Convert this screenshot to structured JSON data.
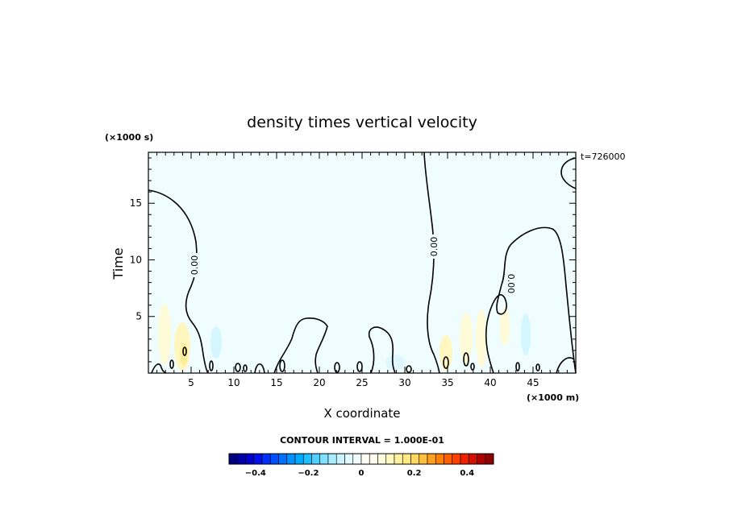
{
  "chart_data": {
    "type": "heatmap",
    "title": "density times vertical velocity",
    "xlabel": "X coordinate",
    "ylabel": "Time",
    "x_unit_label": "(×1000 m)",
    "y_unit_label": "(×1000 s)",
    "time_stamp": "t=726000",
    "xlim": [
      0,
      50
    ],
    "ylim": [
      0,
      19.5
    ],
    "x_ticks": [
      5,
      10,
      15,
      20,
      25,
      30,
      35,
      40,
      45
    ],
    "y_ticks": [
      5,
      10,
      15
    ],
    "contour_interval_text": "CONTOUR INTERVAL = 1.000E-01",
    "contour_labels": [
      {
        "text": "0.00",
        "x": 5.7,
        "y": 9.7
      },
      {
        "text": "0.00",
        "x": 33.7,
        "y": 11.4
      },
      {
        "text": "0.00",
        "x": 42.8,
        "y": 8.3
      }
    ],
    "colorbar": {
      "range": [
        -0.5,
        0.5
      ],
      "tick_labels": [
        "−0.4",
        "−0.2",
        "0",
        "0.2",
        "0.4"
      ],
      "tick_values": [
        -0.4,
        -0.2,
        0,
        0.2,
        0.4
      ],
      "colors": [
        "#00007f",
        "#0000a8",
        "#0000cc",
        "#0010e8",
        "#0030ff",
        "#0050ff",
        "#0070ff",
        "#0090ff",
        "#00aaff",
        "#20c0ff",
        "#50d0ff",
        "#80e0ff",
        "#a8ecff",
        "#c8f4ff",
        "#e0faff",
        "#f0fdff",
        "#fffff8",
        "#fffff0",
        "#fffde0",
        "#fff8c0",
        "#fff0a0",
        "#ffe880",
        "#ffd860",
        "#ffc040",
        "#ffa020",
        "#ff8000",
        "#ff6000",
        "#ff4000",
        "#ee2000",
        "#d01000",
        "#b00000",
        "#900000"
      ]
    },
    "background_value_color": "#f0fdff"
  }
}
